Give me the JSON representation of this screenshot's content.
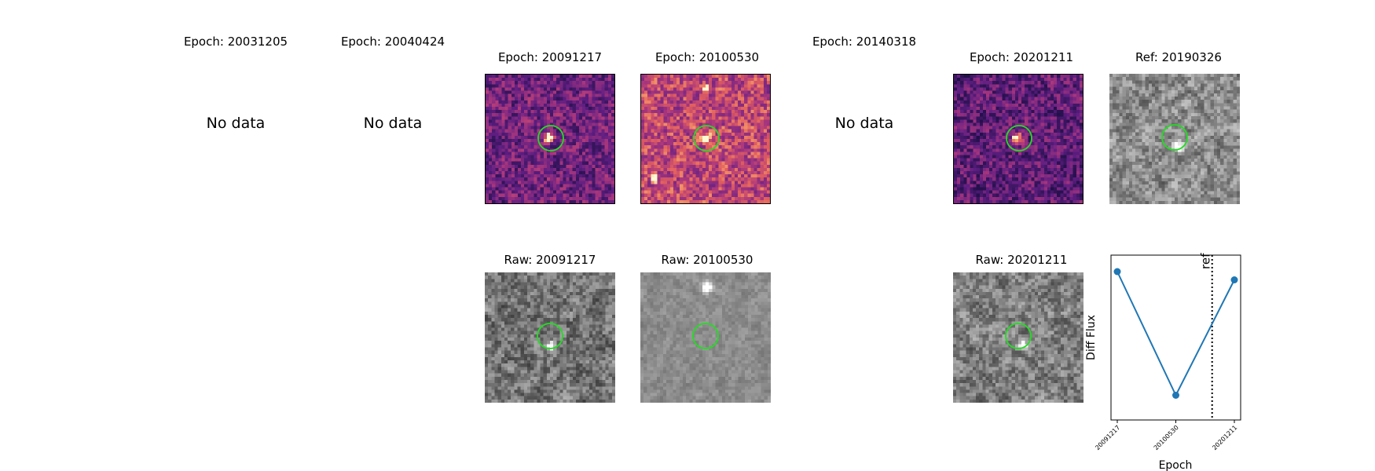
{
  "chart_data": {
    "type": "image-grid+line",
    "epochs": [
      {
        "title": "Epoch: 20031205",
        "status": "No data"
      },
      {
        "title": "Epoch: 20040424",
        "status": "No data"
      },
      {
        "title": "Epoch: 20091217",
        "raw_title": "Raw: 20091217"
      },
      {
        "title": "Epoch: 20100530",
        "raw_title": "Raw: 20100530"
      },
      {
        "title": "Epoch: 20140318",
        "status": "No data"
      },
      {
        "title": "Epoch: 20201211",
        "raw_title": "Raw: 20201211"
      }
    ],
    "reference": {
      "title": "Ref: 20190326"
    },
    "lightcurve": {
      "type": "line",
      "x": [
        "20091217",
        "20100530",
        "20201211"
      ],
      "y_relative": [
        0.9,
        0.15,
        0.85
      ],
      "xlabel": "Epoch",
      "ylabel": "Diff Flux",
      "ref_label": "ref",
      "ref_x_position": 0.78,
      "series_color": "#1f77b4",
      "marker": "circle"
    },
    "colors": {
      "aperture_ring": "#22dd22",
      "diff_cmap": "magma",
      "raw_cmap": "gray"
    }
  }
}
